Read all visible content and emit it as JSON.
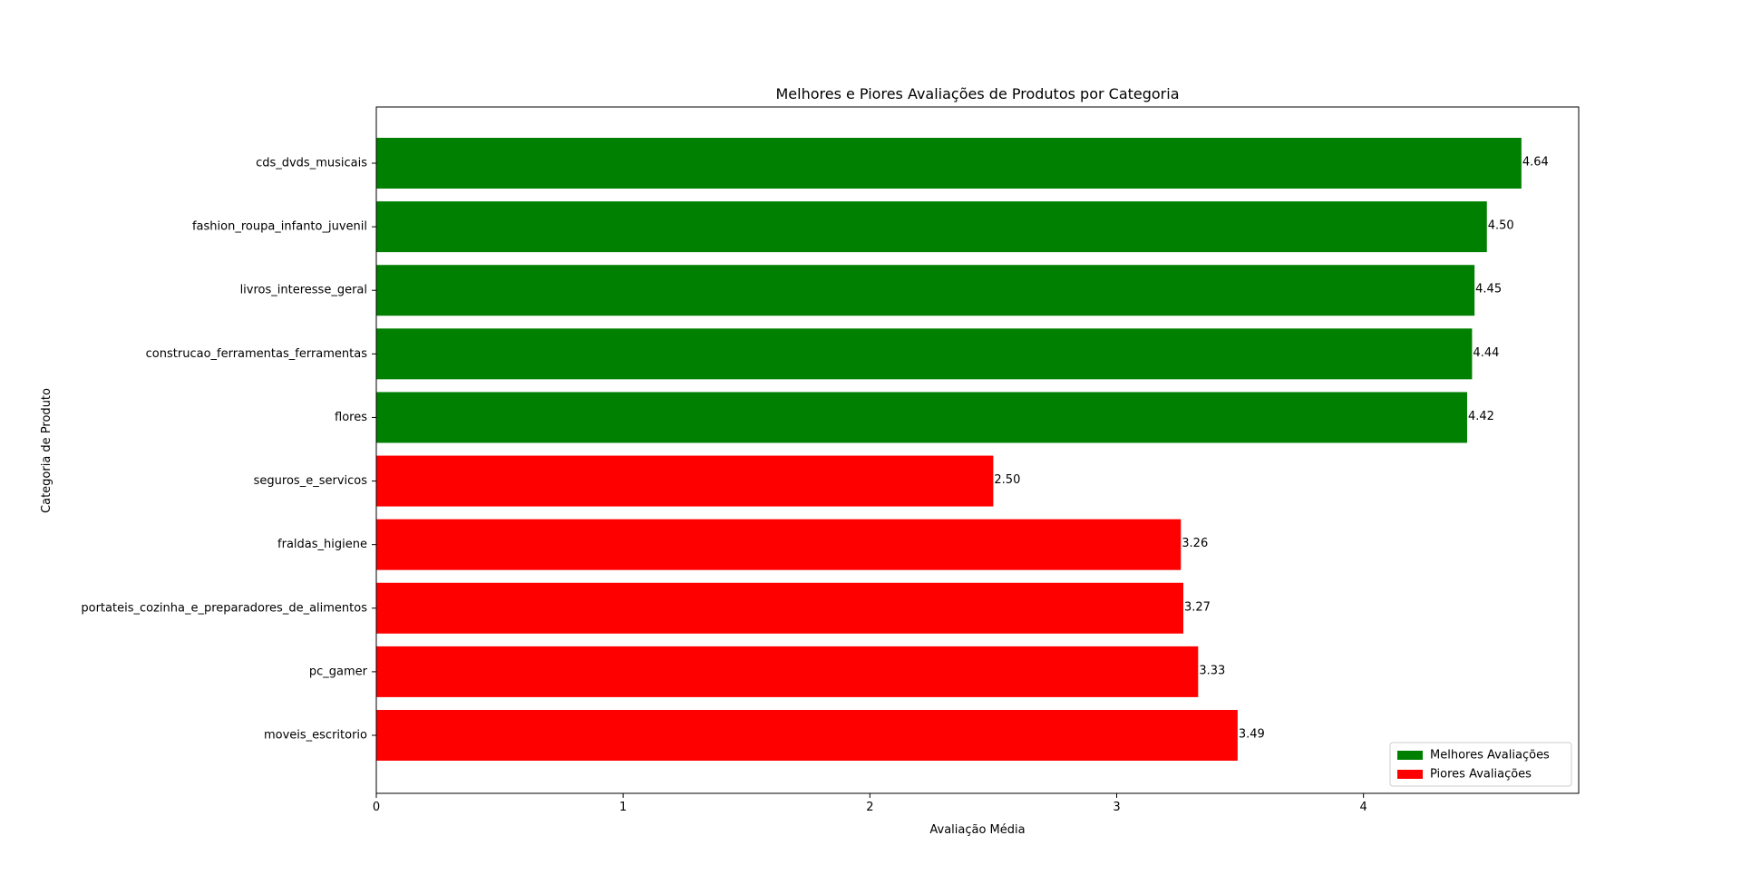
{
  "chart_data": {
    "type": "bar",
    "orientation": "horizontal",
    "title": "Melhores e Piores Avaliações de Produtos por Categoria",
    "xlabel": "Avaliação Média",
    "ylabel": "Categoria de Produto",
    "xlim": [
      0,
      4.872
    ],
    "xticks": [
      0,
      1,
      2,
      3,
      4
    ],
    "xtick_labels": [
      "0",
      "1",
      "2",
      "3",
      "4"
    ],
    "grid": false,
    "legend": {
      "position": "bottom-right",
      "entries": [
        {
          "label": "Melhores Avaliações",
          "color": "#008000"
        },
        {
          "label": "Piores Avaliações",
          "color": "#ff0000"
        }
      ]
    },
    "bars": [
      {
        "category": "cds_dvds_musicais",
        "value": 4.64,
        "value_label": "4.64",
        "group": "Melhores Avaliações",
        "color": "#008000"
      },
      {
        "category": "fashion_roupa_infanto_juvenil",
        "value": 4.5,
        "value_label": "4.50",
        "group": "Melhores Avaliações",
        "color": "#008000"
      },
      {
        "category": "livros_interesse_geral",
        "value": 4.45,
        "value_label": "4.45",
        "group": "Melhores Avaliações",
        "color": "#008000"
      },
      {
        "category": "construcao_ferramentas_ferramentas",
        "value": 4.44,
        "value_label": "4.44",
        "group": "Melhores Avaliações",
        "color": "#008000"
      },
      {
        "category": "flores",
        "value": 4.42,
        "value_label": "4.42",
        "group": "Melhores Avaliações",
        "color": "#008000"
      },
      {
        "category": "seguros_e_servicos",
        "value": 2.5,
        "value_label": "2.50",
        "group": "Piores Avaliações",
        "color": "#ff0000"
      },
      {
        "category": "fraldas_higiene",
        "value": 3.26,
        "value_label": "3.26",
        "group": "Piores Avaliações",
        "color": "#ff0000"
      },
      {
        "category": "portateis_cozinha_e_preparadores_de_alimentos",
        "value": 3.27,
        "value_label": "3.27",
        "group": "Piores Avaliações",
        "color": "#ff0000"
      },
      {
        "category": "pc_gamer",
        "value": 3.33,
        "value_label": "3.33",
        "group": "Piores Avaliações",
        "color": "#ff0000"
      },
      {
        "category": "moveis_escritorio",
        "value": 3.49,
        "value_label": "3.49",
        "group": "Piores Avaliações",
        "color": "#ff0000"
      }
    ]
  }
}
